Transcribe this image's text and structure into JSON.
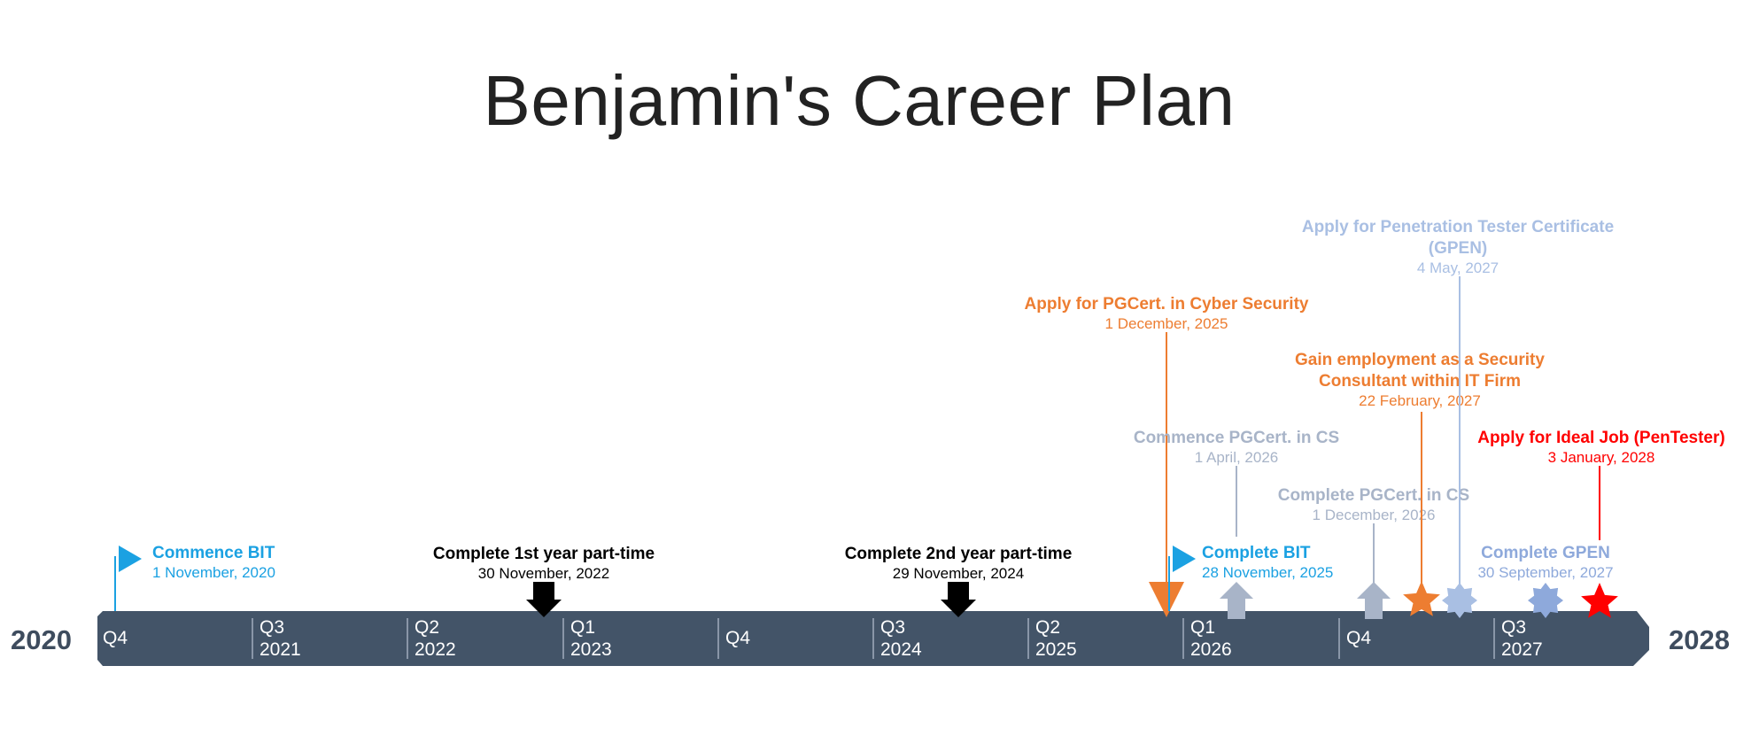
{
  "title": "Benjamin's Career Plan",
  "colors": {
    "bar": "#435468",
    "tick": "#8996a8",
    "year_text": "#3e4c5e"
  },
  "timeline": {
    "start_label": "2020",
    "end_label": "2028",
    "ticks": [
      {
        "quarter": "Q4",
        "year": ""
      },
      {
        "quarter": "Q3",
        "year": "2021"
      },
      {
        "quarter": "Q2",
        "year": "2022"
      },
      {
        "quarter": "Q1",
        "year": "2023"
      },
      {
        "quarter": "Q4",
        "year": ""
      },
      {
        "quarter": "Q3",
        "year": "2024"
      },
      {
        "quarter": "Q2",
        "year": "2025"
      },
      {
        "quarter": "Q1",
        "year": "2026"
      },
      {
        "quarter": "Q4",
        "year": ""
      },
      {
        "quarter": "Q3",
        "year": "2027"
      }
    ]
  },
  "milestones": [
    {
      "id": "commence-bit",
      "title": [
        "Commence BIT"
      ],
      "date": "1 November, 2020",
      "color": "#1ba1e2",
      "marker": "flag",
      "side": "right"
    },
    {
      "id": "complete-1st-year",
      "title": [
        "Complete 1st year part-time"
      ],
      "date": "30 November, 2022",
      "color": "#000000",
      "marker": "arrow-down",
      "side": "center"
    },
    {
      "id": "complete-2nd-year",
      "title": [
        "Complete 2nd year part-time"
      ],
      "date": "29 November, 2024",
      "color": "#000000",
      "marker": "arrow-down",
      "side": "center"
    },
    {
      "id": "apply-pgcert",
      "title": [
        "Apply for PGCert. in Cyber Security"
      ],
      "date": "1 December, 2025",
      "color": "#ed7d31",
      "marker": "triangle-down",
      "side": "center"
    },
    {
      "id": "complete-bit",
      "title": [
        "Complete BIT"
      ],
      "date": "28 November, 2025",
      "color": "#1ba1e2",
      "marker": "flag",
      "side": "right"
    },
    {
      "id": "commence-pgcert",
      "title": [
        "Commence PGCert. in CS"
      ],
      "date": "1 April, 2026",
      "color": "#a8b4c8",
      "marker": "arrow-up",
      "side": "center"
    },
    {
      "id": "complete-pgcert",
      "title": [
        "Complete PGCert. in CS"
      ],
      "date": "1 December, 2026",
      "color": "#a8b4c8",
      "marker": "arrow-up",
      "side": "center"
    },
    {
      "id": "gain-employment",
      "title": [
        "Gain employment as a Security",
        "Consultant within IT Firm"
      ],
      "date": "22 February, 2027",
      "color": "#ed7d31",
      "marker": "star5",
      "side": "center"
    },
    {
      "id": "apply-gpen",
      "title": [
        "Apply for Penetration Tester Certificate",
        "(GPEN)"
      ],
      "date": "4 May, 2027",
      "color": "#a9bfe3",
      "marker": "star8",
      "side": "center"
    },
    {
      "id": "complete-gpen",
      "title": [
        "Complete GPEN"
      ],
      "date": "30 September, 2027",
      "color": "#8ea9db",
      "marker": "star8",
      "side": "center"
    },
    {
      "id": "apply-ideal-job",
      "title": [
        "Apply for Ideal Job (PenTester)"
      ],
      "date": "3 January, 2028",
      "color": "#ff0000",
      "marker": "star5",
      "side": "center"
    }
  ]
}
